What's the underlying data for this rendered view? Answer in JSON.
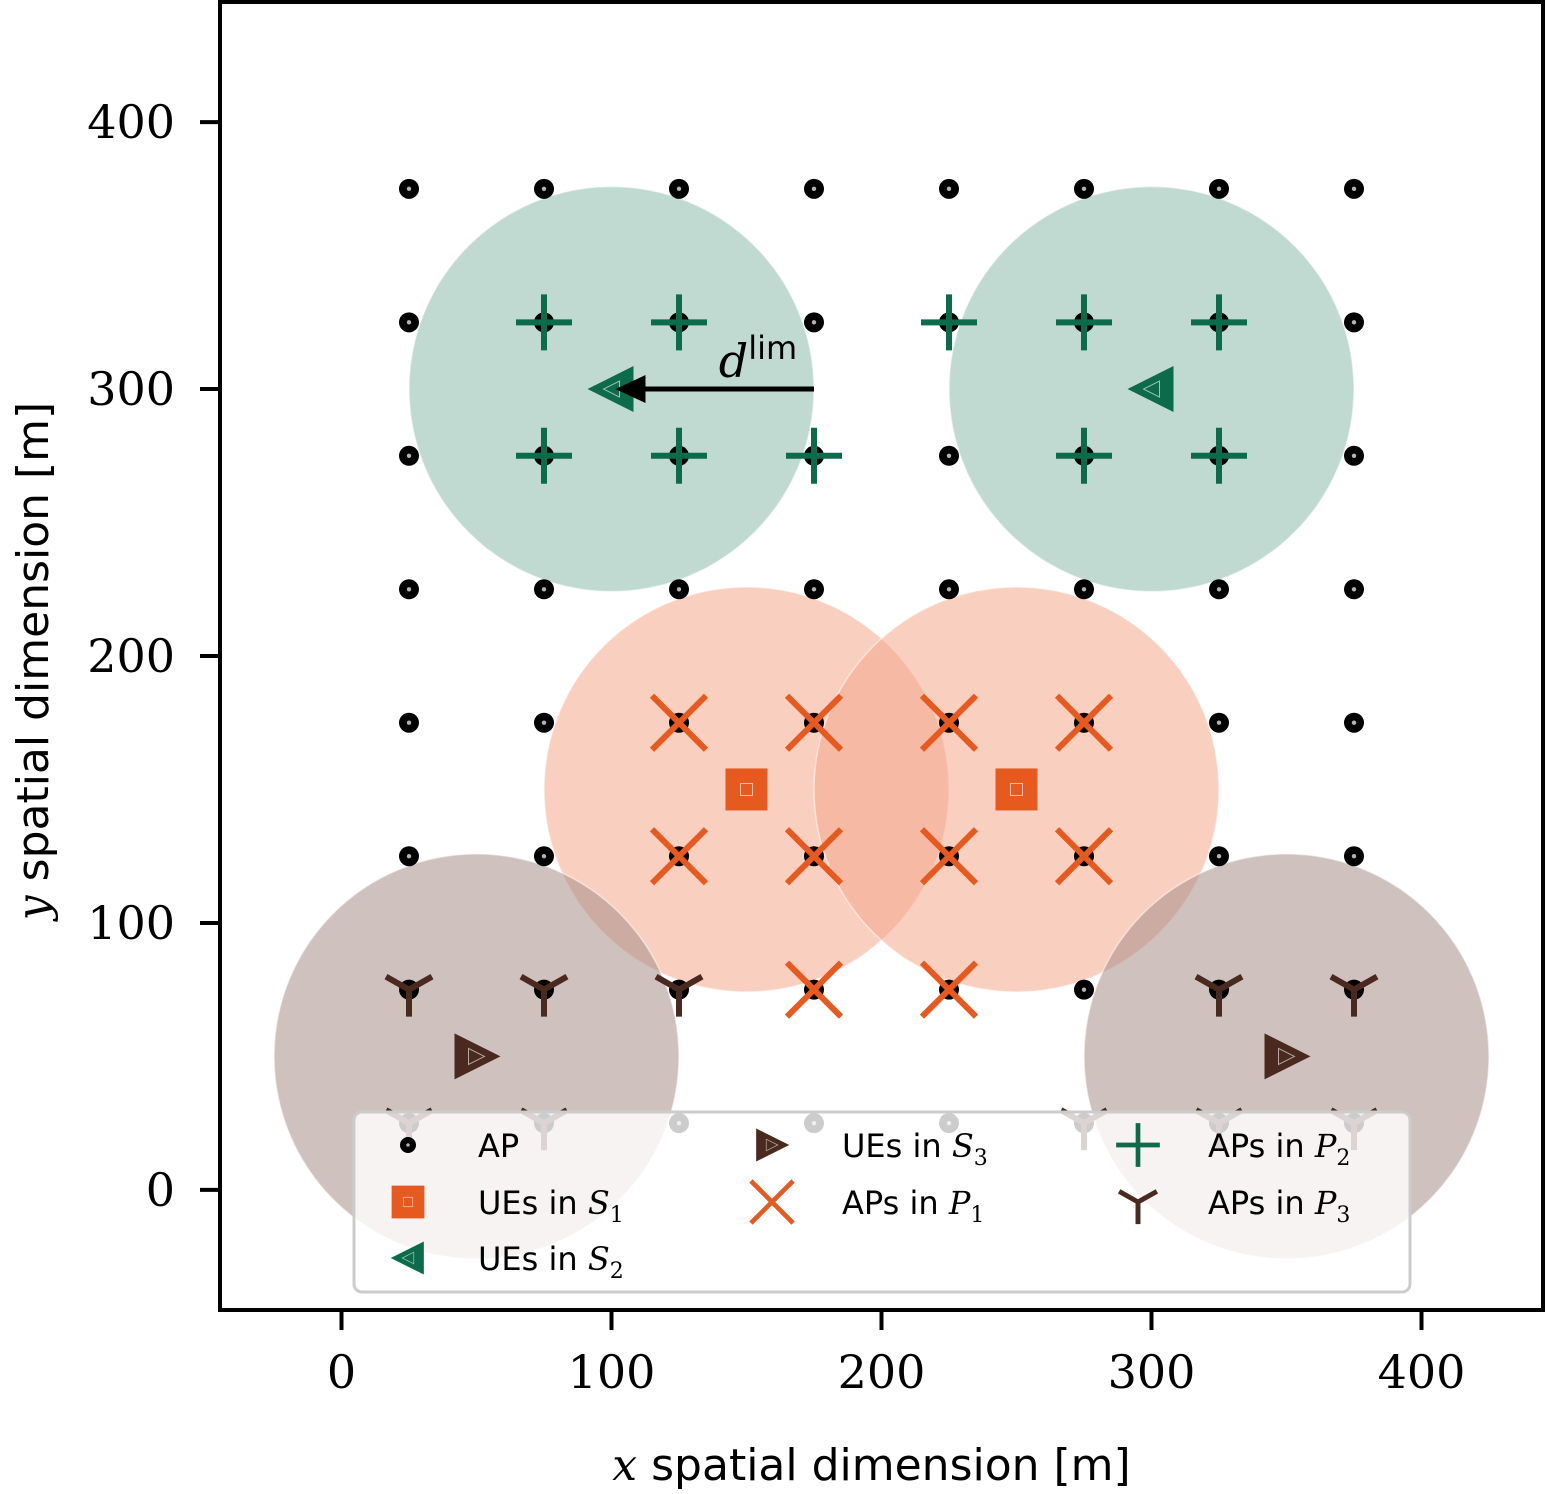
{
  "chart_data": {
    "type": "scatter",
    "xlabel_var": "x",
    "xlabel": "spatial dimension [m]",
    "ylabel_var": "y",
    "ylabel": "spatial dimension [m]",
    "xlim": [
      -45,
      445
    ],
    "ylim": [
      -45,
      445
    ],
    "xticks": [
      0,
      100,
      200,
      300,
      400
    ],
    "yticks": [
      0,
      100,
      200,
      300,
      400
    ],
    "grid": false,
    "legend_position": "lower-center",
    "colors": {
      "ap": "#000000",
      "s1": "#e65a20",
      "s2": "#0c6b4b",
      "s3": "#4a2a1e",
      "s1_fill": "#f4a88c",
      "s2_fill": "#8cbcac",
      "s3_fill": "#a89088"
    },
    "coverage_radius": 75,
    "circles": [
      {
        "group": "s2",
        "x": 100,
        "y": 300
      },
      {
        "group": "s2",
        "x": 300,
        "y": 300
      },
      {
        "group": "s1",
        "x": 150,
        "y": 150
      },
      {
        "group": "s1",
        "x": 250,
        "y": 150
      },
      {
        "group": "s3",
        "x": 50,
        "y": 50
      },
      {
        "group": "s3",
        "x": 350,
        "y": 50
      }
    ],
    "annotation": {
      "text": "d",
      "sup": "lim",
      "from": [
        175,
        300
      ],
      "to": [
        100,
        300
      ]
    },
    "series": [
      {
        "key": "ap",
        "marker": "dot",
        "color": "#000000",
        "x_grid": [
          25,
          75,
          125,
          175,
          225,
          275,
          325,
          375
        ],
        "y_grid": [
          25,
          75,
          125,
          175,
          225,
          275,
          325,
          375
        ]
      },
      {
        "key": "ue_s1",
        "marker": "square",
        "color": "#e65a20",
        "points": [
          [
            150,
            150
          ],
          [
            250,
            150
          ]
        ]
      },
      {
        "key": "ue_s2",
        "marker": "triangle-left",
        "color": "#0c6b4b",
        "points": [
          [
            100,
            300
          ],
          [
            300,
            300
          ]
        ]
      },
      {
        "key": "ue_s3",
        "marker": "triangle-right",
        "color": "#4a2a1e",
        "points": [
          [
            50,
            50
          ],
          [
            350,
            50
          ]
        ]
      },
      {
        "key": "ap_p1",
        "marker": "x",
        "color": "#e65a20",
        "points": [
          [
            125,
            175
          ],
          [
            175,
            175
          ],
          [
            225,
            175
          ],
          [
            275,
            175
          ],
          [
            125,
            125
          ],
          [
            175,
            125
          ],
          [
            225,
            125
          ],
          [
            275,
            125
          ],
          [
            175,
            75
          ],
          [
            225,
            75
          ]
        ]
      },
      {
        "key": "ap_p2",
        "marker": "plus",
        "color": "#0c6b4b",
        "points": [
          [
            75,
            325
          ],
          [
            125,
            325
          ],
          [
            225,
            325
          ],
          [
            275,
            325
          ],
          [
            325,
            325
          ],
          [
            75,
            275
          ],
          [
            125,
            275
          ],
          [
            175,
            275
          ],
          [
            275,
            275
          ],
          [
            325,
            275
          ]
        ]
      },
      {
        "key": "ap_p3",
        "marker": "tri-down",
        "color": "#4a2a1e",
        "points": [
          [
            25,
            75
          ],
          [
            75,
            75
          ],
          [
            125,
            75
          ],
          [
            325,
            75
          ],
          [
            375,
            75
          ],
          [
            25,
            25
          ],
          [
            75,
            25
          ],
          [
            275,
            25
          ],
          [
            325,
            25
          ],
          [
            375,
            25
          ]
        ]
      }
    ],
    "legend": [
      {
        "key": "ap",
        "marker": "dot",
        "color": "#000000",
        "text": "AP",
        "set": "",
        "sub": ""
      },
      {
        "key": "ue_s1",
        "marker": "square",
        "color": "#e65a20",
        "text": "UEs in ",
        "set": "S",
        "sub": "1"
      },
      {
        "key": "ue_s2",
        "marker": "triangle-left",
        "color": "#0c6b4b",
        "text": "UEs in ",
        "set": "S",
        "sub": "2"
      },
      {
        "key": "ue_s3",
        "marker": "triangle-right",
        "color": "#4a2a1e",
        "text": "UEs in ",
        "set": "S",
        "sub": "3"
      },
      {
        "key": "ap_p1",
        "marker": "x",
        "color": "#e65a20",
        "text": "APs in ",
        "set": "P",
        "sub": "1"
      },
      {
        "key": "ap_p2",
        "marker": "plus",
        "color": "#0c6b4b",
        "text": "APs in ",
        "set": "P",
        "sub": "2"
      },
      {
        "key": "ap_p3",
        "marker": "tri-down",
        "color": "#4a2a1e",
        "text": "APs in ",
        "set": "P",
        "sub": "3"
      }
    ]
  }
}
